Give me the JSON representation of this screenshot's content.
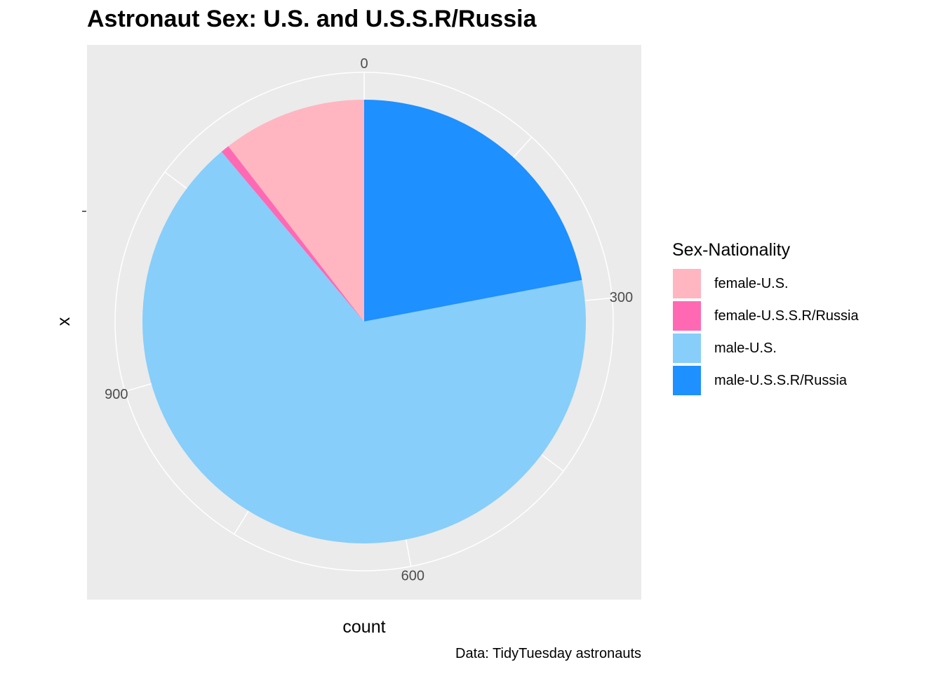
{
  "chart_data": {
    "type": "pie",
    "title": "Astronaut Sex: U.S. and U.S.S.R/Russia",
    "xlabel": "count",
    "ylabel": "x",
    "caption": "Data: TidyTuesday astronauts",
    "radial_ticks": [
      "0",
      "300",
      "600",
      "900"
    ],
    "radial_tick_values": [
      0,
      300,
      600,
      900
    ],
    "total": 1277,
    "start_direction": "top, clockwise",
    "legend_title": "Sex-Nationality",
    "legend_position": "right",
    "panel_background": "#EBEBEB",
    "grid": true,
    "slices": [
      {
        "label": "male-U.S.S.R/Russia",
        "value": 281,
        "color": "#1E90FF"
      },
      {
        "label": "male-U.S.",
        "value": 854,
        "color": "#87CEFA"
      },
      {
        "label": "female-U.S.S.R/Russia",
        "value": 8,
        "color": "#FF69B4"
      },
      {
        "label": "female-U.S.",
        "value": 134,
        "color": "#FFB6C1"
      }
    ],
    "legend_entries": [
      {
        "label": "female-U.S.",
        "color": "#FFB6C1"
      },
      {
        "label": "female-U.S.S.R/Russia",
        "color": "#FF69B4"
      },
      {
        "label": "male-U.S.",
        "color": "#87CEFA"
      },
      {
        "label": "male-U.S.S.R/Russia",
        "color": "#1E90FF"
      }
    ]
  }
}
